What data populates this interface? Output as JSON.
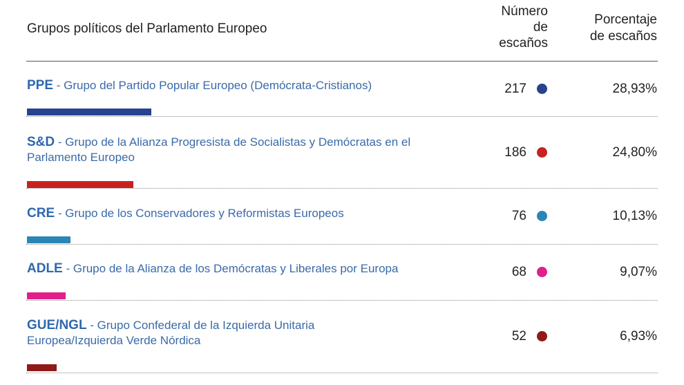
{
  "header": {
    "group_label": "Grupos políticos del Parlamento Europeo",
    "seats_label": "Número\nde\nescaños",
    "pct_label": "Porcentaje\nde escaños"
  },
  "rows": [
    {
      "abbr": "PPE",
      "name": " - Grupo del Partido Popular Europeo (Demócrata-Cristianos)",
      "seats": "217",
      "pct": "28,93%",
      "color": "#27428f"
    },
    {
      "abbr": "S&D",
      "name": " - Grupo de la Alianza Progresista de Socialistas y Demócratas en el Parlamento Europeo",
      "seats": "186",
      "pct": "24,80%",
      "color": "#c7221f"
    },
    {
      "abbr": "CRE",
      "name": " - Grupo de los Conservadores y Reformistas Europeos",
      "seats": "76",
      "pct": "10,13%",
      "color": "#2b86b5"
    },
    {
      "abbr": "ADLE",
      "name": " - Grupo de la Alianza de los Demócratas y Liberales por Europa",
      "seats": "68",
      "pct": "9,07%",
      "color": "#e0208a"
    },
    {
      "abbr": "GUE/NGL",
      "name": " - Grupo Confederal de la Izquierda Unitaria Europea/Izquierda Verde Nórdica",
      "seats": "52",
      "pct": "6,93%",
      "color": "#8e1a1a"
    }
  ],
  "chart_data": {
    "type": "table",
    "columns": [
      "Grupos políticos del Parlamento Europeo",
      "Número de escaños",
      "Porcentaje de escaños"
    ],
    "categories": [
      "PPE",
      "S&D",
      "CRE",
      "ADLE",
      "GUE/NGL"
    ],
    "values": [
      217,
      186,
      76,
      68,
      52
    ],
    "percentages": [
      28.93,
      24.8,
      10.13,
      9.07,
      6.93
    ],
    "colors": [
      "#27428f",
      "#c7221f",
      "#2b86b5",
      "#e0208a",
      "#8e1a1a"
    ]
  }
}
